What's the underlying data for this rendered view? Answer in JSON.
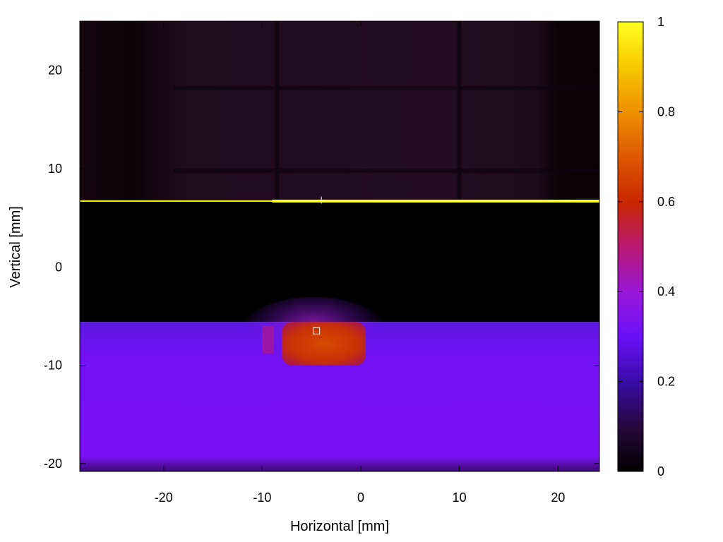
{
  "chart_data": {
    "type": "heatmap",
    "title": "",
    "xlabel": "Horizontal [mm]",
    "ylabel": "Vertical [mm]",
    "xlim": [
      -28.5,
      24.2
    ],
    "ylim": [
      -20.8,
      25
    ],
    "x_ticks": [
      -20,
      -10,
      0,
      10,
      20
    ],
    "y_ticks": [
      20,
      10,
      0,
      -10,
      -20
    ],
    "colorbar": {
      "range": [
        0,
        1
      ],
      "ticks": [
        0,
        0.2,
        0.4,
        0.6,
        0.8,
        1
      ],
      "tick_labels": [
        "0",
        "0.2",
        "0.4",
        "0.6",
        "0.8",
        "1"
      ],
      "palette": [
        "#000000",
        "#2a0a4a",
        "#3f0cc0",
        "#8a10ff",
        "#c020a0",
        "#d02000",
        "#e86000",
        "#f8b000",
        "#ffff10"
      ]
    },
    "regions": [
      {
        "name": "upper faint region",
        "y_range": [
          6.7,
          25
        ],
        "value": 0.05
      },
      {
        "name": "dark band",
        "y_range": [
          -5.6,
          6.7
        ],
        "value": 0.0
      },
      {
        "name": "lower bright region",
        "y_range": [
          -20.8,
          -5.6
        ],
        "value": 0.24
      },
      {
        "name": "hot spot",
        "x_range": [
          -8,
          0.5
        ],
        "y_range": [
          -10,
          -5.6
        ],
        "value": 0.58
      }
    ],
    "bright_line": {
      "y": 6.7,
      "value": 1.0
    },
    "markers": [
      {
        "type": "cross",
        "x": -4,
        "y": 6.8
      },
      {
        "type": "square",
        "x": -4.5,
        "y": -6.5
      }
    ],
    "grid": false
  }
}
